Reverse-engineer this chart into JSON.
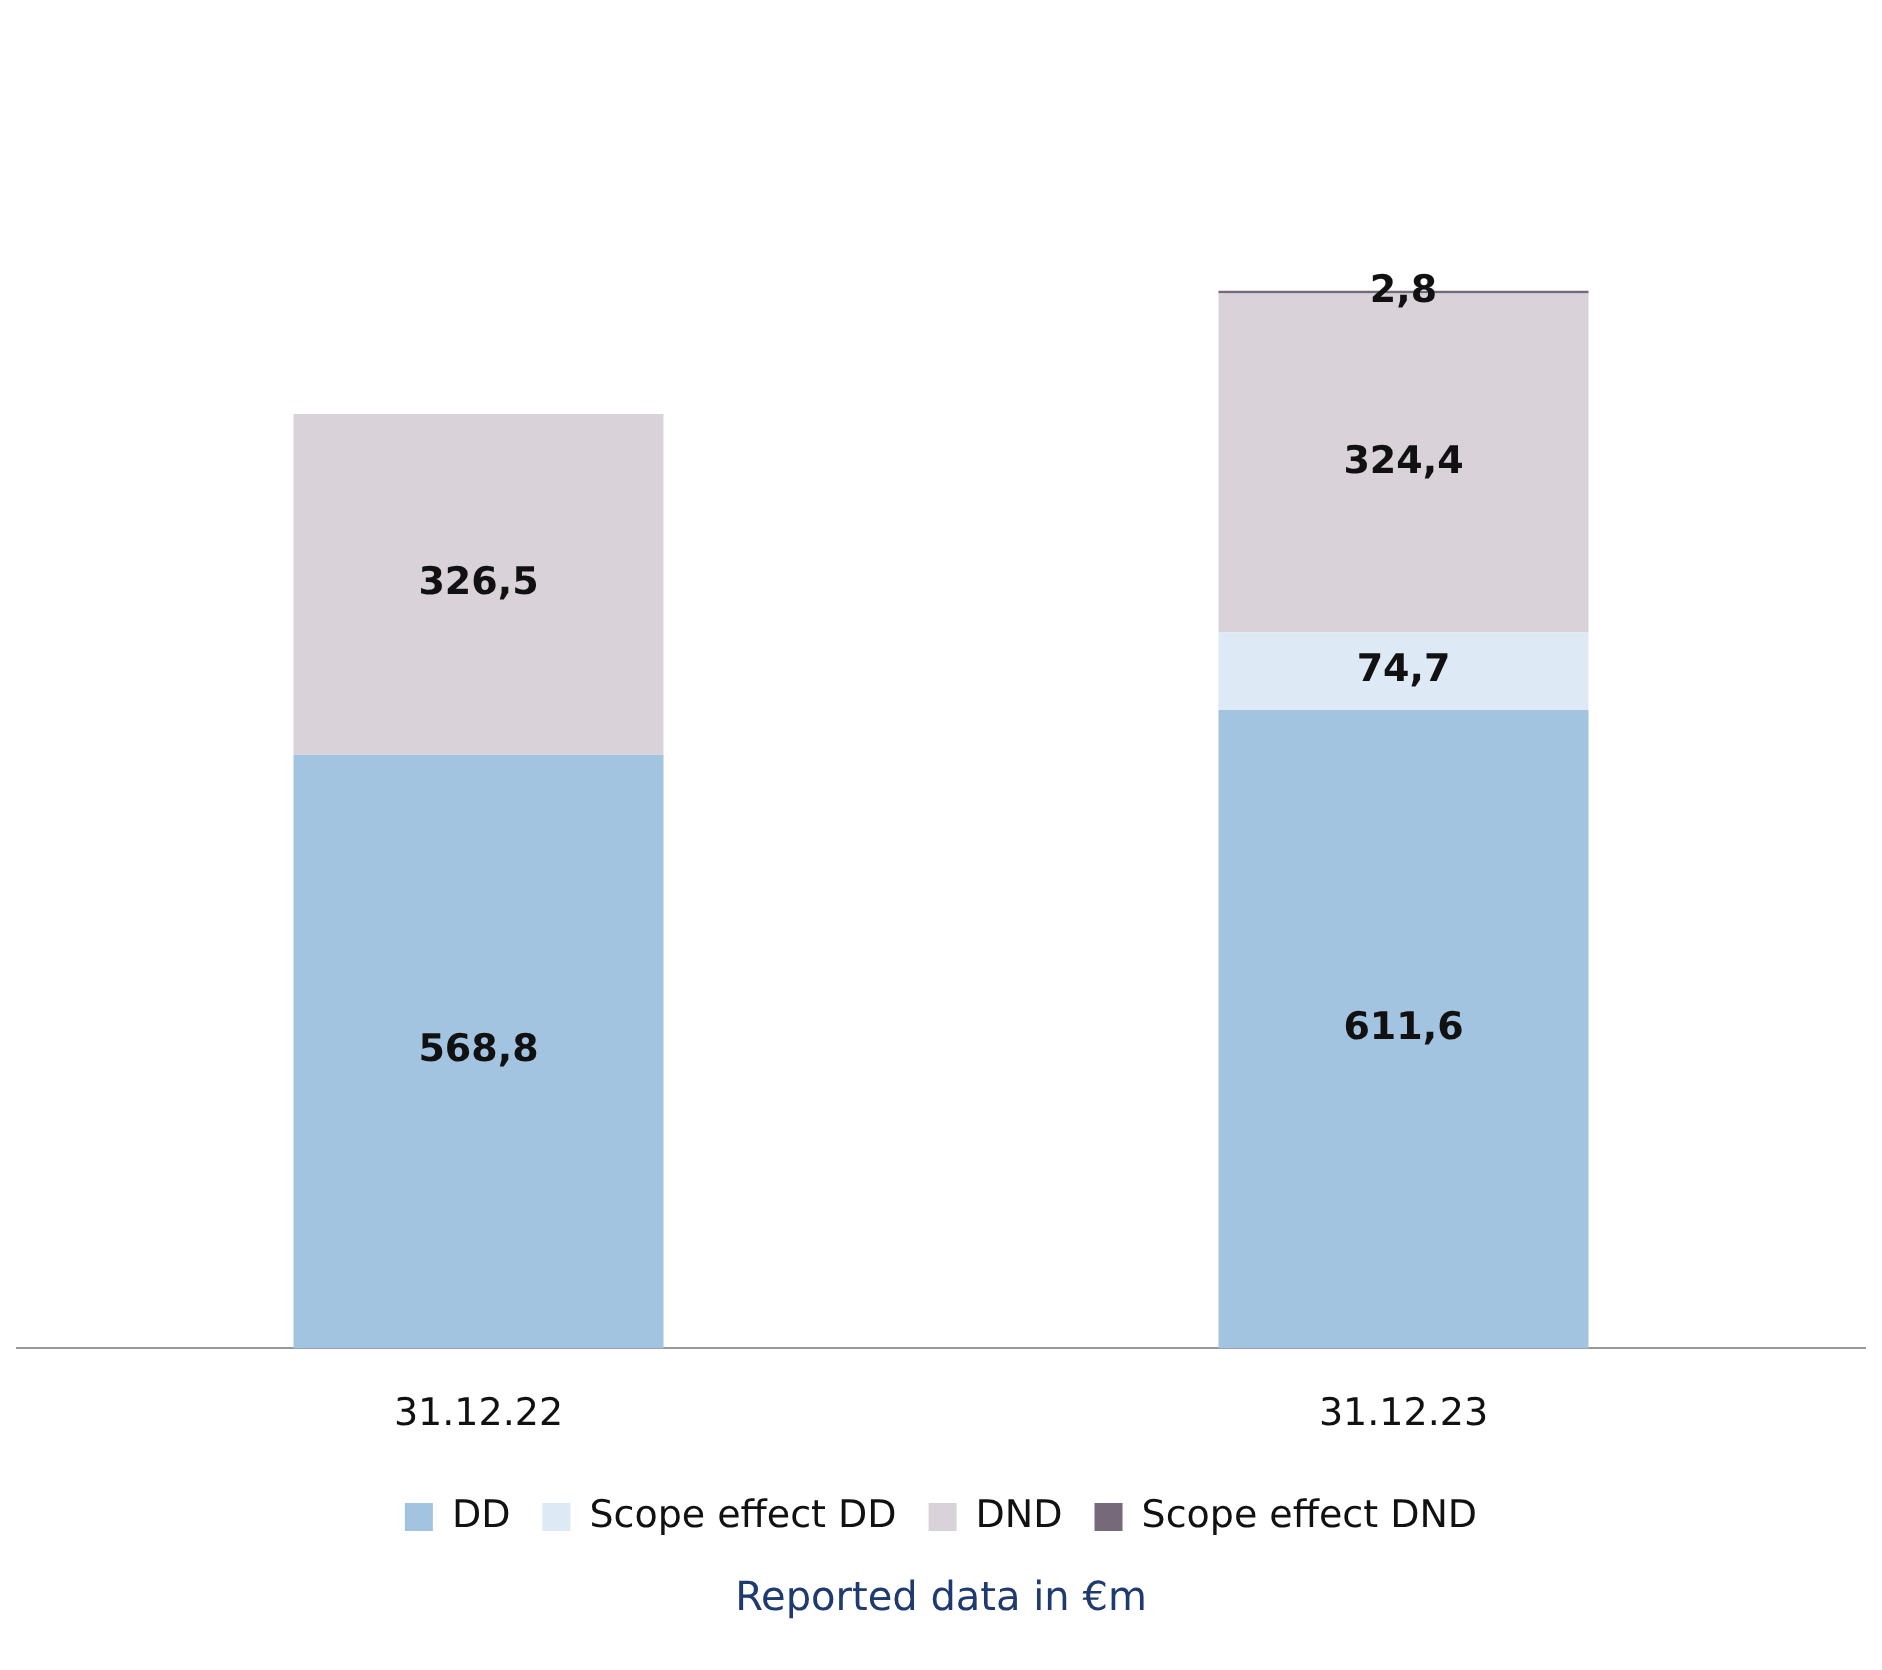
{
  "chart_data": {
    "type": "bar",
    "stacked": true,
    "categories": [
      "31.12.22",
      "31.12.23"
    ],
    "series": [
      {
        "name": "DD",
        "color": "#a3c4e0",
        "values": [
          568.8,
          611.6
        ],
        "value_labels": [
          "568,8",
          "611,6"
        ]
      },
      {
        "name": "Scope effect DD",
        "color": "#dde9f4",
        "values": [
          null,
          74.7
        ],
        "value_labels": [
          null,
          "74,7"
        ]
      },
      {
        "name": "DND",
        "color": "#d9d3d9",
        "values": [
          326.5,
          324.4
        ],
        "value_labels": [
          "326,5",
          "324,4"
        ]
      },
      {
        "name": "Scope effect DND",
        "color": "#75697a",
        "values": [
          null,
          2.8
        ],
        "value_labels": [
          null,
          "2,8"
        ]
      }
    ],
    "legend": "bottom",
    "grid": false,
    "tick_labels": "x",
    "annotations": [
      "Reported data in €m"
    ]
  }
}
